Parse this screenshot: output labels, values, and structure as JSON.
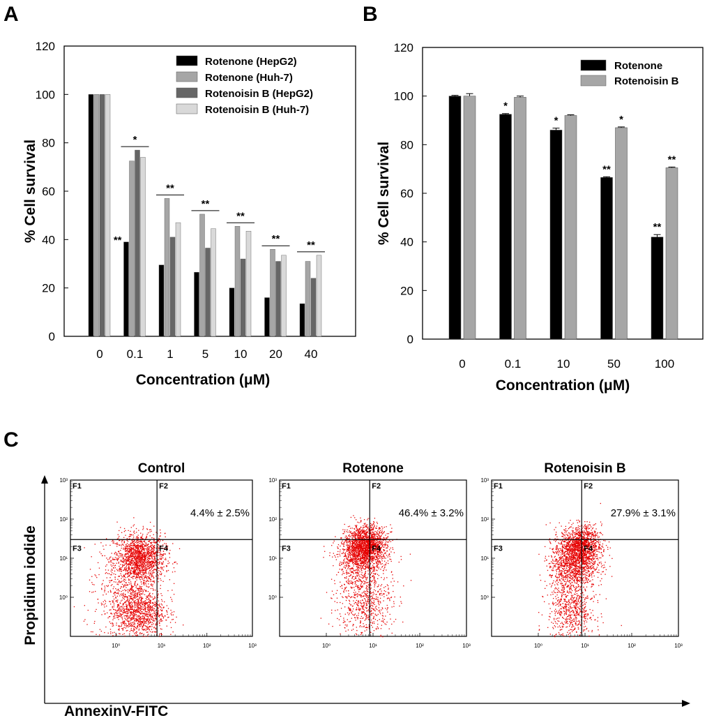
{
  "chart_data": [
    {
      "panel": "A",
      "type": "bar",
      "title": "",
      "xlabel": "Concentration (μM)",
      "ylabel": "% Cell survival",
      "ylim": [
        0,
        120
      ],
      "yticks": [
        0,
        20,
        40,
        60,
        80,
        100,
        120
      ],
      "categories": [
        "0",
        "0.1",
        "1",
        "5",
        "10",
        "20",
        "40"
      ],
      "series": [
        {
          "name": "Rotenone (HepG2)",
          "color": "#000000",
          "values": [
            100,
            39,
            29.5,
            26.5,
            20,
            16,
            13.5
          ]
        },
        {
          "name": "Rotenone (Huh-7)",
          "color": "#a6a6a6",
          "values": [
            100,
            72.5,
            57,
            50.5,
            45.5,
            36,
            31
          ]
        },
        {
          "name": "Rotenoisin B (HepG2)",
          "color": "#666666",
          "values": [
            100,
            77,
            41,
            36.5,
            32,
            31,
            24
          ]
        },
        {
          "name": "Rotenoisin B (Huh-7)",
          "color": "#d9d9d9",
          "values": [
            100,
            74,
            47,
            44.5,
            43.5,
            33.5,
            33.5
          ]
        }
      ],
      "legend_position": "top-right",
      "annotations": [
        {
          "category": "0.1",
          "text": "*",
          "bracket": true
        },
        {
          "category": "0.1",
          "text": "**",
          "bracket": false
        },
        {
          "category": "1",
          "text": "**",
          "bracket": true
        },
        {
          "category": "5",
          "text": "**",
          "bracket": true
        },
        {
          "category": "10",
          "text": "**",
          "bracket": true
        },
        {
          "category": "20",
          "text": "**",
          "bracket": true
        },
        {
          "category": "40",
          "text": "**",
          "bracket": true
        }
      ]
    },
    {
      "panel": "B",
      "type": "bar",
      "title": "",
      "xlabel": "Concentration (μM)",
      "ylabel": "% Cell survival",
      "ylim": [
        0,
        120
      ],
      "yticks": [
        0,
        20,
        40,
        60,
        80,
        100,
        120
      ],
      "categories": [
        "0",
        "0.1",
        "10",
        "50",
        "100"
      ],
      "series": [
        {
          "name": "Rotenone",
          "color": "#000000",
          "values": [
            100,
            92.5,
            86,
            66.5,
            42
          ],
          "errors": [
            0.3,
            0.3,
            0.8,
            0.3,
            1.0
          ],
          "labels": [
            "",
            "*",
            "*",
            "**",
            "**"
          ]
        },
        {
          "name": "Rotenoisin B",
          "color": "#a6a6a6",
          "values": [
            100,
            99.5,
            92,
            87,
            70.5
          ],
          "errors": [
            1.0,
            0.5,
            0.3,
            0.3,
            0.3
          ],
          "labels": [
            "",
            "",
            "",
            "*",
            "**"
          ]
        }
      ],
      "legend_position": "top-right"
    },
    {
      "panel": "C",
      "type": "scatter",
      "xlabel": "AnnexinV-FITC",
      "ylabel": "Propidium iodide",
      "axis_scale": "log",
      "xlim": [
        0.1,
        1000
      ],
      "ylim": [
        0.1,
        1000
      ],
      "tick_labels": [
        "10⁰",
        "10¹",
        "10²",
        "10³"
      ],
      "quadrant_labels": [
        "F1",
        "F2",
        "F3",
        "F4"
      ],
      "plots": [
        {
          "title": "Control",
          "value_text": "4.4% ± 2.5%",
          "color": "#e60000",
          "clusters": [
            {
              "x": 3.2,
              "y": 10,
              "sx": 0.28,
              "sy": 0.32,
              "n": 1600
            },
            {
              "x": 3.0,
              "y": 0.45,
              "sx": 0.3,
              "sy": 0.35,
              "n": 1100
            },
            {
              "x": 1.6,
              "y": 0.9,
              "sx": 0.45,
              "sy": 0.6,
              "n": 300
            }
          ],
          "gate_x": 8,
          "gate_y": 30
        },
        {
          "title": "Rotenone",
          "value_text": "46.4% ± 3.2%",
          "color": "#e60000",
          "clusters": [
            {
              "x": 7,
              "y": 22,
              "sx": 0.22,
              "sy": 0.25,
              "n": 1600
            },
            {
              "x": 5,
              "y": 9,
              "sx": 0.25,
              "sy": 0.3,
              "n": 600
            },
            {
              "x": 6.5,
              "y": 0.8,
              "sx": 0.3,
              "sy": 0.45,
              "n": 650
            }
          ],
          "gate_x": 8.5,
          "gate_y": 30
        },
        {
          "title": "Rotenoisin B",
          "value_text": "27.9% ± 3.1%",
          "color": "#e60000",
          "clusters": [
            {
              "x": 8,
              "y": 22,
              "sx": 0.22,
              "sy": 0.25,
              "n": 1200
            },
            {
              "x": 5.5,
              "y": 7,
              "sx": 0.25,
              "sy": 0.3,
              "n": 1000
            },
            {
              "x": 5,
              "y": 0.5,
              "sx": 0.25,
              "sy": 0.45,
              "n": 700
            }
          ],
          "gate_x": 8.5,
          "gate_y": 30
        }
      ]
    }
  ],
  "panel_labels": [
    "A",
    "B",
    "C"
  ]
}
